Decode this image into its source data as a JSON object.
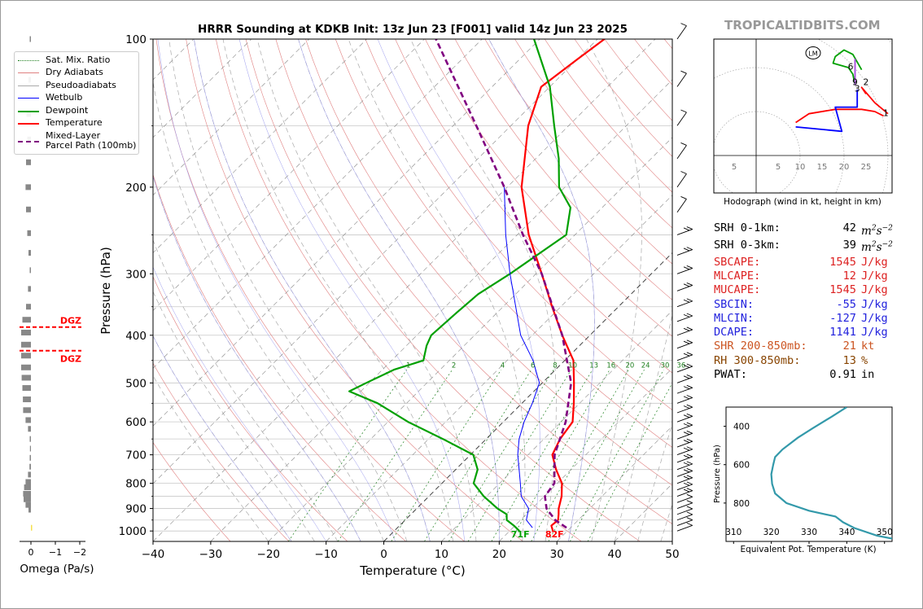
{
  "brand": "TROPICALTIDBITS.COM",
  "title": "HRRR Sounding at KDKB Init: 13z Jun 23 [F001] valid 14z Jun 23 2025",
  "colors": {
    "temperature": "#ff0000",
    "dewpoint": "#00a000",
    "wetbulb": "#0000ff",
    "parcel": "#800080",
    "dry_adiabat": "#e08080",
    "pseudoadiabat": "#aaaaaa",
    "mixing_ratio": "#208020",
    "theta_e": "#3399aa"
  },
  "legend": [
    {
      "label": "Sat. Mix. Ratio",
      "style": "mix"
    },
    {
      "label": "Dry Adiabats",
      "style": "dry"
    },
    {
      "label": "Pseudoadiabats",
      "style": "moist"
    },
    {
      "label": "Wetbulb",
      "style": "wetbulb"
    },
    {
      "label": "Dewpoint",
      "style": "dewpoint"
    },
    {
      "label": "Temperature",
      "style": "temperature"
    },
    {
      "label": "Mixed-Layer\nParcel Path (100mb)",
      "style": "parcel"
    }
  ],
  "omega_panel": {
    "xlabel": "Omega (Pa/s)",
    "ticks": [
      "0",
      "−1",
      "−2"
    ],
    "dgz_label": "DGZ",
    "dgz_bounds_hpa": [
      385,
      430
    ],
    "bars": [
      {
        "p": 100,
        "v": 0.05
      },
      {
        "p": 121,
        "v": 0.1
      },
      {
        "p": 142,
        "v": 0.18
      },
      {
        "p": 160,
        "v": 0.15
      },
      {
        "p": 178,
        "v": 0.2
      },
      {
        "p": 200,
        "v": 0.22
      },
      {
        "p": 222,
        "v": 0.2
      },
      {
        "p": 248,
        "v": 0.15
      },
      {
        "p": 272,
        "v": 0.1
      },
      {
        "p": 295,
        "v": 0.05
      },
      {
        "p": 322,
        "v": 0.12
      },
      {
        "p": 350,
        "v": 0.2
      },
      {
        "p": 372,
        "v": 0.35
      },
      {
        "p": 395,
        "v": 0.4
      },
      {
        "p": 418,
        "v": 0.4
      },
      {
        "p": 440,
        "v": 0.4
      },
      {
        "p": 465,
        "v": 0.4
      },
      {
        "p": 488,
        "v": 0.38
      },
      {
        "p": 512,
        "v": 0.35
      },
      {
        "p": 540,
        "v": 0.33
      },
      {
        "p": 568,
        "v": 0.32
      },
      {
        "p": 595,
        "v": 0.22
      },
      {
        "p": 620,
        "v": 0.12
      },
      {
        "p": 650,
        "v": 0.05
      },
      {
        "p": 680,
        "v": 0.04
      },
      {
        "p": 710,
        "v": 0.05
      },
      {
        "p": 740,
        "v": 0.06
      },
      {
        "p": 768,
        "v": 0.12
      },
      {
        "p": 795,
        "v": 0.22
      },
      {
        "p": 815,
        "v": 0.28
      },
      {
        "p": 840,
        "v": 0.32
      },
      {
        "p": 862,
        "v": 0.3
      },
      {
        "p": 885,
        "v": 0.22
      },
      {
        "p": 905,
        "v": 0.1
      },
      {
        "p": 985,
        "v": -0.05
      }
    ]
  },
  "skewt": {
    "ylabel": "Pressure (hPa)",
    "xlabel": "Temperature (°C)",
    "pressure_ticks": [
      100,
      200,
      300,
      400,
      500,
      600,
      700,
      800,
      900,
      1000
    ],
    "temp_ticks": [
      -40,
      -30,
      -20,
      -10,
      0,
      10,
      20,
      30,
      40,
      50
    ],
    "mixing_ratio_labels": [
      "1",
      "2",
      "4",
      "6",
      "8",
      "10",
      "13",
      "16",
      "20",
      "24",
      "30",
      "36"
    ],
    "surface_dewpoint_label": "71F",
    "surface_temperature_label": "82F"
  },
  "chart_data": [
    {
      "type": "line",
      "name": "skew-t",
      "title": "HRRR Sounding at KDKB Init: 13z Jun 23 [F001] valid 14z Jun 23 2025",
      "xlabel": "Temperature (°C)",
      "ylabel": "Pressure (hPa)",
      "xlim": [
        -40,
        50
      ],
      "ylim": [
        1050,
        100
      ],
      "y_scale": "log",
      "series": [
        {
          "name": "Temperature",
          "points": [
            [
              1000,
              27.5
            ],
            [
              975,
              26.3
            ],
            [
              950,
              26.5
            ],
            [
              925,
              25.6
            ],
            [
              900,
              24.6
            ],
            [
              850,
              23.0
            ],
            [
              800,
              20.8
            ],
            [
              750,
              17.4
            ],
            [
              700,
              14.2
            ],
            [
              650,
              12.8
            ],
            [
              600,
              12.0
            ],
            [
              550,
              9.0
            ],
            [
              500,
              5.5
            ],
            [
              450,
              1.5
            ],
            [
              400,
              -4.8
            ],
            [
              350,
              -11.5
            ],
            [
              300,
              -19.0
            ],
            [
              250,
              -28.0
            ],
            [
              200,
              -37.5
            ],
            [
              150,
              -47.0
            ],
            [
              125,
              -51.5
            ],
            [
              110,
              -50.0
            ],
            [
              100,
              -48.8
            ]
          ]
        },
        {
          "name": "Dewpoint",
          "points": [
            [
              1000,
              21.7
            ],
            [
              975,
              19.8
            ],
            [
              950,
              17.6
            ],
            [
              925,
              16.6
            ],
            [
              900,
              14.0
            ],
            [
              850,
              9.5
            ],
            [
              800,
              5.5
            ],
            [
              750,
              3.8
            ],
            [
              700,
              0.5
            ],
            [
              650,
              -7.5
            ],
            [
              600,
              -16.5
            ],
            [
              550,
              -25.0
            ],
            [
              520,
              -32.0
            ],
            [
              500,
              -30.5
            ],
            [
              470,
              -28.0
            ],
            [
              450,
              -24.5
            ],
            [
              420,
              -26.5
            ],
            [
              400,
              -27.5
            ],
            [
              360,
              -27.0
            ],
            [
              330,
              -26.5
            ],
            [
              300,
              -24.5
            ],
            [
              250,
              -21.5
            ],
            [
              220,
              -25.5
            ],
            [
              200,
              -31.0
            ],
            [
              175,
              -36.0
            ],
            [
              150,
              -42.5
            ],
            [
              125,
              -50.0
            ],
            [
              100,
              -61.0
            ]
          ]
        },
        {
          "name": "Wetbulb",
          "points": [
            [
              985,
              23.4
            ],
            [
              950,
              21.0
            ],
            [
              900,
              19.4
            ],
            [
              850,
              16.0
            ],
            [
              800,
              13.6
            ],
            [
              750,
              11.0
            ],
            [
              700,
              8.2
            ],
            [
              650,
              5.7
            ],
            [
              600,
              3.6
            ],
            [
              550,
              1.8
            ],
            [
              500,
              -0.5
            ],
            [
              450,
              -5.5
            ],
            [
              400,
              -12.0
            ],
            [
              350,
              -17.8
            ],
            [
              300,
              -24.5
            ],
            [
              250,
              -32.0
            ],
            [
              200,
              -40.5
            ]
          ]
        },
        {
          "name": "Mixed-Layer Parcel Path (100mb)",
          "points": [
            [
              985,
              29.3
            ],
            [
              950,
              26.0
            ],
            [
              900,
              22.5
            ],
            [
              850,
              20.1
            ],
            [
              800,
              19.5
            ],
            [
              700,
              14.6
            ],
            [
              600,
              10.8
            ],
            [
              500,
              5.0
            ],
            [
              400,
              -4.8
            ],
            [
              300,
              -19.0
            ],
            [
              250,
              -29.0
            ],
            [
              200,
              -40.5
            ],
            [
              150,
              -56.0
            ],
            [
              100,
              -78.0
            ]
          ]
        }
      ]
    },
    {
      "type": "line",
      "name": "hodograph",
      "xlabel": "Hodograph (wind in kt, height in km)",
      "x_ticks": [
        -5,
        5,
        10,
        15,
        20,
        25
      ],
      "ring_labels": [
        "5",
        "5",
        "10",
        "15",
        "20",
        "25"
      ],
      "height_labels": [
        {
          "km": "1",
          "u": 29.5,
          "v": 9.0
        },
        {
          "km": "2",
          "u": 25.0,
          "v": 16.0
        },
        {
          "km": "3",
          "u": 23.0,
          "v": 14.5
        },
        {
          "km": "6",
          "u": 21.5,
          "v": 19.5
        },
        {
          "km": "9",
          "u": 22.5,
          "v": 16.0
        }
      ],
      "storm_motion_label": "LM",
      "series": [
        {
          "name": "0-3km",
          "points": [
            [
              9,
              7.5
            ],
            [
              12,
              9.5
            ],
            [
              18,
              10.5
            ],
            [
              24,
              10.5
            ],
            [
              27,
              10
            ],
            [
              29,
              9
            ]
          ]
        },
        {
          "name": "3-6km",
          "points": [
            [
              9,
              6.5
            ],
            [
              19.5,
              5.5
            ],
            [
              18,
              11
            ],
            [
              23,
              11
            ],
            [
              23,
              15
            ]
          ]
        },
        {
          "name": "6-9km",
          "points": [
            [
              25,
              14
            ],
            [
              24,
              15.5
            ],
            [
              27,
              12
            ],
            [
              30,
              9.5
            ]
          ]
        },
        {
          "name": "9-12km",
          "points": [
            [
              22.5,
              16
            ],
            [
              22,
              18.5
            ],
            [
              21,
              20
            ],
            [
              17.5,
              21
            ],
            [
              18,
              22.5
            ],
            [
              20,
              24
            ],
            [
              22,
              23
            ],
            [
              24,
              19.5
            ]
          ]
        }
      ]
    },
    {
      "type": "line",
      "name": "theta-e",
      "xlabel": "Equivalent Pot. Temperature (K)",
      "ylabel": "Pressure (hPa)",
      "xlim": [
        308,
        352
      ],
      "ylim": [
        1000,
        300
      ],
      "x_ticks": [
        310,
        320,
        330,
        340,
        350
      ],
      "y_ticks": [
        400,
        600,
        800
      ],
      "series": [
        {
          "name": "Theta-E",
          "points": [
            [
              340,
              300
            ],
            [
              336,
              350
            ],
            [
              331,
              410
            ],
            [
              327,
              460
            ],
            [
              323,
              520
            ],
            [
              321,
              560
            ],
            [
              320.5,
              600
            ],
            [
              320,
              650
            ],
            [
              320.2,
              700
            ],
            [
              321,
              750
            ],
            [
              324,
              800
            ],
            [
              330,
              840
            ],
            [
              337,
              870
            ],
            [
              339,
              900
            ],
            [
              342,
              930
            ],
            [
              348,
              970
            ],
            [
              352,
              985
            ]
          ]
        }
      ]
    }
  ],
  "stats": [
    {
      "label": "SRH 0-1km:",
      "value": "42",
      "unit": "m2s-2",
      "color": "#000000"
    },
    {
      "label": "SRH 0-3km:",
      "value": "39",
      "unit": "m2s-2",
      "color": "#000000"
    },
    {
      "label": "SBCAPE:",
      "value": "1545",
      "unit": "J/kg",
      "color": "#dd2222"
    },
    {
      "label": "MLCAPE:",
      "value": "12",
      "unit": "J/kg",
      "color": "#dd2222"
    },
    {
      "label": "MUCAPE:",
      "value": "1545",
      "unit": "J/kg",
      "color": "#dd2222"
    },
    {
      "label": "SBCIN:",
      "value": "-55",
      "unit": "J/kg",
      "color": "#2222dd"
    },
    {
      "label": "MLCIN:",
      "value": "-127",
      "unit": "J/kg",
      "color": "#2222dd"
    },
    {
      "label": "DCAPE:",
      "value": "1141",
      "unit": "J/kg",
      "color": "#2222dd"
    },
    {
      "label": "SHR 200-850mb:",
      "value": "21",
      "unit": "kt",
      "color": "#cc5522"
    },
    {
      "label": "RH 300-850mb:",
      "value": "13",
      "unit": "%",
      "color": "#884400"
    },
    {
      "label": "PWAT:",
      "value": "0.91",
      "unit": "in",
      "color": "#000000"
    }
  ]
}
